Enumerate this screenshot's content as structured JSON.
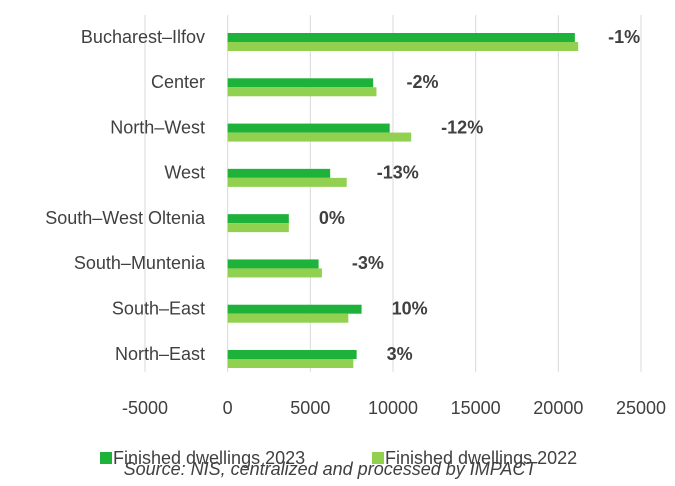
{
  "chart_data": {
    "type": "hbar",
    "categories": [
      "Bucharest–Ilfov",
      "Center",
      "North–West",
      "West",
      "South–West Oltenia",
      "South–Muntenia",
      "South–East",
      "North–East"
    ],
    "series": [
      {
        "name": "Finished dwellings 2023",
        "color": "#1fb23a",
        "values": [
          21000,
          8800,
          9800,
          6200,
          3700,
          5500,
          8100,
          7800
        ]
      },
      {
        "name": "Finished dwellings 2022",
        "color": "#92d050",
        "values": [
          21200,
          9000,
          11100,
          7200,
          3700,
          5700,
          7300,
          7600
        ]
      }
    ],
    "change_labels": [
      "-1%",
      "-2%",
      "-12%",
      "-13%",
      "0%",
      "-3%",
      "10%",
      "3%"
    ],
    "xlim": [
      -5000,
      25000
    ],
    "xticks": [
      -5000,
      0,
      5000,
      10000,
      15000,
      20000,
      25000
    ],
    "grid": true,
    "legend": "bottom",
    "source": "Source: NIS, centralized and processed by IMPACT"
  }
}
